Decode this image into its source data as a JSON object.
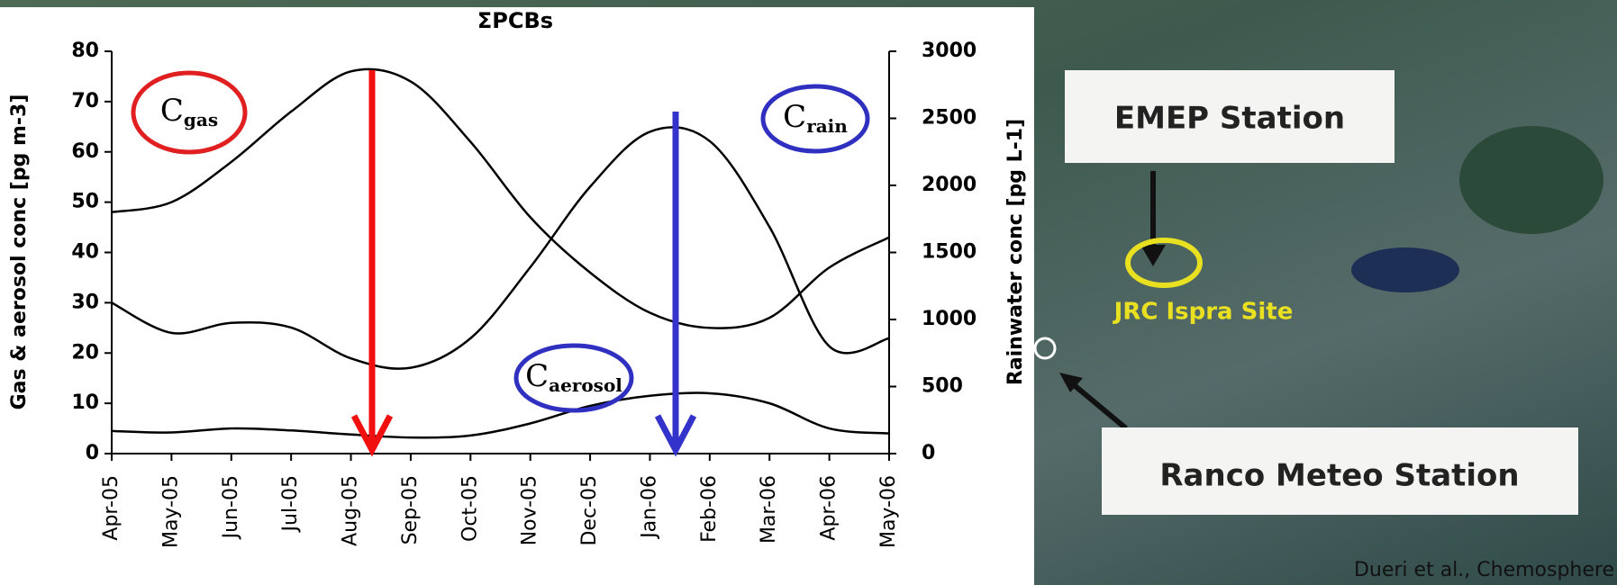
{
  "chart_data": {
    "type": "line",
    "title": "ΣPCBs",
    "y_label": "Gas & aerosol conc [pg m-3]",
    "y2_label": "Rainwater conc [pg L-1]",
    "categories": [
      "Apr-05",
      "May-05",
      "Jun-05",
      "Jul-05",
      "Aug-05",
      "Sep-05",
      "Oct-05",
      "Nov-05",
      "Dec-05",
      "Jan-06",
      "Feb-06",
      "Mar-06",
      "Apr-06",
      "May-06"
    ],
    "ylim": [
      0,
      80
    ],
    "yticks": [
      0,
      10,
      20,
      30,
      40,
      50,
      60,
      70,
      80
    ],
    "y2lim": [
      0,
      3000
    ],
    "y2ticks": [
      0,
      500,
      1000,
      1500,
      2000,
      2500,
      3000
    ],
    "series": [
      {
        "label_main": "C",
        "label_sub": "gas",
        "color": "#000000",
        "ellipse": "#e02020",
        "values": [
          48,
          50,
          58,
          68,
          76,
          74,
          62,
          47,
          36,
          28,
          25,
          27,
          37,
          43
        ]
      },
      {
        "label_main": "C",
        "label_sub": "aerosol",
        "color": "#000000",
        "ellipse": "#3030c0",
        "values": [
          4.5,
          4.2,
          5,
          4.6,
          3.8,
          3.2,
          3.6,
          6,
          9.5,
          11.5,
          12,
          10,
          5,
          4
        ]
      },
      {
        "label_main": "C",
        "label_sub": "rain",
        "color": "#000000",
        "ellipse": "#3030c0",
        "axis": "y2",
        "values": [
          1125,
          900,
          975,
          940,
          710,
          640,
          860,
          1390,
          1990,
          2400,
          2330,
          1690,
          800,
          860
        ]
      }
    ]
  },
  "map": {
    "labels": [
      "EMEP Station",
      "JRC Ispra Site",
      "Ranco Meteo Station"
    ]
  },
  "citation": "Dueri et al., Chemosphere"
}
